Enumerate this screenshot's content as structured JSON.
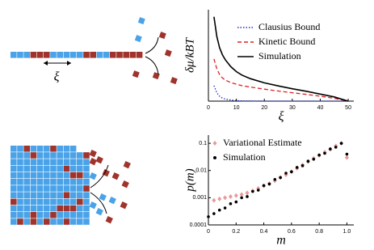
{
  "diagram": {
    "length_label": "ξ"
  },
  "chart_data": [
    {
      "type": "line",
      "ylabel": "δμ/kBT",
      "xlabel": "ξ",
      "x": [
        2,
        3,
        4,
        5,
        6,
        8,
        10,
        12,
        15,
        20,
        25,
        30,
        35,
        40,
        45,
        50
      ],
      "series": [
        {
          "name": "Clausius Bound",
          "color": "#2233cc",
          "dash": "dotted",
          "values": [
            1.1,
            0.6,
            0.35,
            0.22,
            0.15,
            0.08,
            0.04,
            0.02,
            0.01,
            0,
            0,
            0,
            0,
            0,
            0,
            0
          ]
        },
        {
          "name": "Kinetic Bound",
          "color": "#dd2222",
          "dash": "dashed",
          "values": [
            3,
            2.3,
            1.9,
            1.65,
            1.5,
            1.32,
            1.2,
            1.1,
            1.0,
            0.85,
            0.72,
            0.6,
            0.48,
            0.35,
            0.2,
            0
          ]
        },
        {
          "name": "Simulation",
          "color": "#000000",
          "dash": "solid",
          "values": [
            6,
            4.6,
            3.8,
            3.3,
            2.95,
            2.45,
            2.1,
            1.85,
            1.6,
            1.3,
            1.08,
            0.88,
            0.7,
            0.5,
            0.3,
            0
          ]
        }
      ],
      "xlim": [
        0,
        52
      ],
      "xticks": [
        0,
        10,
        20,
        30,
        40,
        50
      ],
      "ylim": [
        0,
        6.5
      ],
      "legend": "upper right"
    },
    {
      "type": "scatter",
      "ylabel": "p(m)",
      "xlabel": "m",
      "yscale": "log",
      "series": [
        {
          "name": "Variational Estimate",
          "color": "#e89a9a",
          "marker": "diamond",
          "x": [
            0.04,
            0.08,
            0.12,
            0.16,
            0.2,
            0.24,
            0.28,
            0.32,
            0.36,
            0.4,
            0.44,
            0.48,
            0.52,
            0.56,
            0.6,
            0.64,
            0.68,
            0.72,
            0.76,
            0.8,
            0.84,
            0.88,
            0.92,
            0.96,
            1.0
          ],
          "values": [
            0.0008,
            0.0009,
            0.001,
            0.0011,
            0.0012,
            0.0013,
            0.0015,
            0.0018,
            0.0022,
            0.0027,
            0.0033,
            0.0042,
            0.0055,
            0.007,
            0.009,
            0.012,
            0.016,
            0.021,
            0.028,
            0.036,
            0.047,
            0.06,
            0.08,
            0.1,
            0.03
          ]
        },
        {
          "name": "Simulation",
          "color": "#000000",
          "marker": "dot",
          "x": [
            0,
            0.04,
            0.08,
            0.12,
            0.16,
            0.2,
            0.24,
            0.28,
            0.32,
            0.36,
            0.4,
            0.44,
            0.48,
            0.52,
            0.56,
            0.6,
            0.64,
            0.68,
            0.72,
            0.76,
            0.8,
            0.84,
            0.88,
            0.92,
            0.96,
            1.0
          ],
          "values": [
            0.0002,
            0.00026,
            0.00035,
            0.00042,
            0.0006,
            0.0007,
            0.001,
            0.0011,
            0.0017,
            0.0019,
            0.0028,
            0.0032,
            0.0047,
            0.0055,
            0.008,
            0.009,
            0.013,
            0.015,
            0.022,
            0.026,
            0.037,
            0.043,
            0.062,
            0.072,
            0.1,
            0.04
          ]
        }
      ],
      "xlim": [
        0,
        1.05
      ],
      "xticks": [
        0,
        0.2,
        0.4,
        0.6,
        0.8,
        {
          "value": 1,
          "label": "1.0"
        }
      ],
      "ylim": [
        0.0001,
        0.2
      ],
      "yticks": [
        0.0001,
        0.001,
        0.01,
        0.1
      ],
      "legend": "upper left"
    }
  ]
}
